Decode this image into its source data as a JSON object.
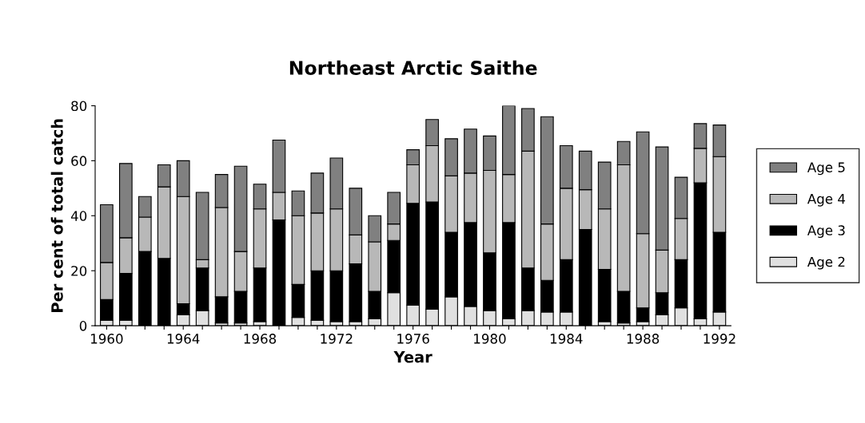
{
  "chart_data": {
    "type": "bar",
    "title": "Northeast Arctic Saithe",
    "xlabel": "Year",
    "ylabel": "Per cent of total catch",
    "categories": [
      "1960",
      null,
      null,
      null,
      "1964",
      null,
      null,
      null,
      "1968",
      null,
      null,
      null,
      "1972",
      null,
      null,
      null,
      "1976",
      null,
      null,
      null,
      "1980",
      null,
      null,
      null,
      "1984",
      null,
      null,
      null,
      "1988",
      null,
      null,
      null,
      "1992"
    ],
    "stacked": true,
    "ylim": [
      0,
      80
    ],
    "yticks": [
      0,
      20,
      40,
      60,
      80
    ],
    "grid": false,
    "legend": "right",
    "series": [
      {
        "name": "Age 2",
        "color": "#e0e0e0",
        "values": [
          2,
          2,
          null,
          null,
          4,
          5.5,
          1,
          1,
          1.5,
          null,
          3,
          2,
          1.5,
          1.5,
          2.5,
          12,
          7.5,
          6,
          10.5,
          7,
          5.5,
          2.5,
          5.5,
          5,
          5,
          null,
          1.5,
          1,
          1.5,
          4,
          6.5,
          2.5,
          5
        ]
      },
      {
        "name": "Age 3",
        "color": "#000000",
        "values": [
          7.5,
          17,
          27,
          24.5,
          4,
          15.5,
          9.5,
          11.5,
          19.5,
          38.5,
          12,
          18,
          18.5,
          21,
          10,
          19,
          37,
          39,
          23.5,
          30.5,
          21,
          35,
          15.5,
          11.5,
          19,
          35,
          19,
          11.5,
          5,
          8,
          17.5,
          49.5,
          29
        ]
      },
      {
        "name": "Age 4",
        "color": "#b8b8b8",
        "values": [
          13.5,
          13,
          12.5,
          26,
          39,
          3,
          32.5,
          14.5,
          21.5,
          10,
          25,
          21,
          22.5,
          10.5,
          18,
          6,
          14,
          20.5,
          20.5,
          18,
          30,
          17.5,
          42.5,
          20.5,
          26,
          14.5,
          22,
          46,
          27,
          15.5,
          15,
          12.5,
          27.5
        ]
      },
      {
        "name": "Age 5",
        "color": "#808080",
        "values": [
          21,
          27,
          7.5,
          8,
          13,
          24.5,
          12,
          31,
          9,
          19,
          9,
          14.5,
          18.5,
          17,
          9.5,
          11.5,
          5.5,
          9.5,
          13.5,
          16,
          12.5,
          25,
          15.5,
          39,
          15.5,
          14,
          17,
          8.5,
          37,
          37.5,
          15,
          9,
          11.5
        ]
      }
    ]
  }
}
